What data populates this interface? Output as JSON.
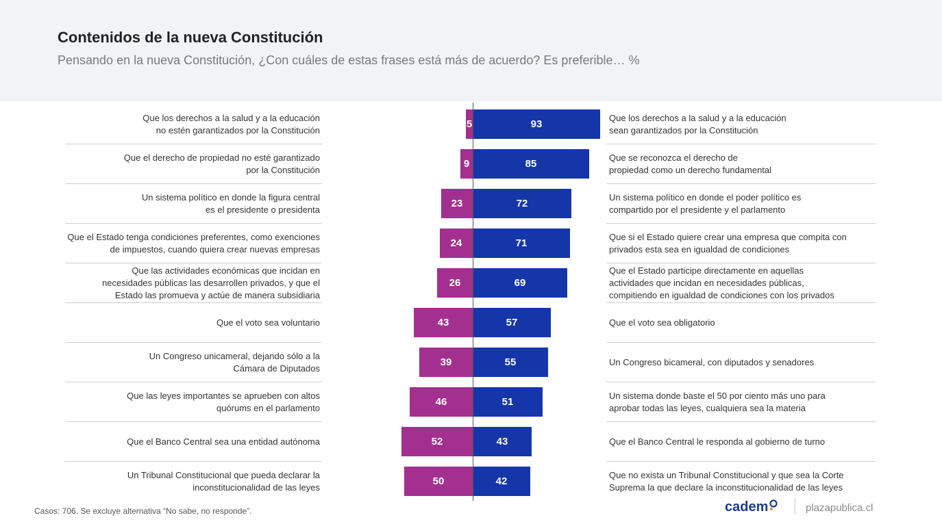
{
  "header": {
    "title": "Contenidos de la nueva Constitución",
    "subtitle": "Pensando en la nueva Constitución, ¿Con cuáles de estas frases está más de acuerdo? Es preferible… %"
  },
  "colors": {
    "left": "#a3308f",
    "right": "#1536a8",
    "header_bg": "#f2f3f5"
  },
  "chart_data": {
    "type": "bar",
    "orientation": "diverging-horizontal",
    "series": [
      {
        "name": "",
        "color": "#a3308f",
        "values": [
          5,
          9,
          23,
          24,
          26,
          43,
          39,
          46,
          52,
          50
        ]
      },
      {
        "name": "",
        "color": "#1536a8",
        "values": [
          93,
          85,
          72,
          71,
          69,
          57,
          55,
          51,
          43,
          42
        ]
      }
    ],
    "rows": [
      {
        "left_label": "Que los derechos a la salud y a la educación\nno estén garantizados por la Constitución",
        "left": 5,
        "right": 93,
        "right_label": "Que los derechos a la salud y a la educación\nsean garantizados por la Constitución"
      },
      {
        "left_label": "Que el derecho de propiedad no esté garantizado\npor la Constitución",
        "left": 9,
        "right": 85,
        "right_label": "Que se reconozca el derecho de\npropiedad como un derecho fundamental"
      },
      {
        "left_label": "Un sistema político en donde la figura central\nes el presidente o presidenta",
        "left": 23,
        "right": 72,
        "right_label": "Un sistema político en donde el poder político es\ncompartido por el presidente y el parlamento"
      },
      {
        "left_label": "Que el Estado tenga condiciones preferentes, como exenciones\nde impuestos, cuando quiera crear nuevas empresas",
        "left": 24,
        "right": 71,
        "right_label": "Que si el Estado quiere crear una empresa que compita con\nprivados esta sea en igualdad de condiciones"
      },
      {
        "left_label": "Que las actividades económicas que incidan en\nnecesidades públicas las desarrollen privados, y que el\nEstado las promueva y actúe de manera subsidiaria",
        "left": 26,
        "right": 69,
        "right_label": "Que el Estado participe directamente en aquellas\nactividades que incidan en necesidades públicas,\ncompitiendo en igualdad de condiciones con los privados"
      },
      {
        "left_label": "Que el voto sea voluntario",
        "left": 43,
        "right": 57,
        "right_label": "Que el voto sea obligatorio"
      },
      {
        "left_label": "Un Congreso unicameral, dejando sólo a la\nCámara de Diputados",
        "left": 39,
        "right": 55,
        "right_label": "Un Congreso bicameral, con diputados y senadores"
      },
      {
        "left_label": "Que las leyes importantes se aprueben con altos\nquórums en el parlamento",
        "left": 46,
        "right": 51,
        "right_label": "Un sistema donde baste el 50 por ciento más uno para\naprobar todas las leyes, cualquiera sea la materia"
      },
      {
        "left_label": "Que el Banco Central sea una entidad autónoma",
        "left": 52,
        "right": 43,
        "right_label": "Que el Banco Central le responda al gobierno de turno"
      },
      {
        "left_label": "Un Tribunal Constitucional que pueda declarar la\ninconstitucionalidad de las leyes",
        "left": 50,
        "right": 42,
        "right_label": "Que no exista un Tribunal Constitucional y que sea la Corte\nSuprema la que declare la inconstitucionalidad de las leyes"
      }
    ]
  },
  "footer": {
    "note": "Casos: 706. Se excluye alternativa “No sabe, no responde”.",
    "logo": "cadem",
    "site": "plazapublica.cl"
  }
}
